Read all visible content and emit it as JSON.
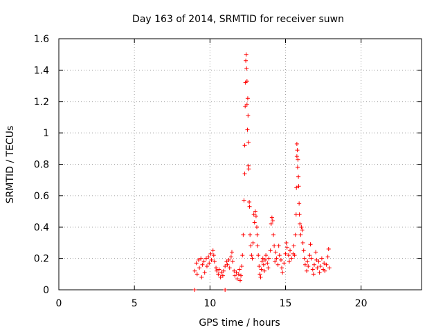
{
  "chart_data": {
    "type": "scatter",
    "title": "Day 163 of 2014, SRMTID for receiver suwn",
    "xlabel": "GPS time / hours",
    "ylabel": "SRMTID / TECUs",
    "xlim": [
      0,
      24
    ],
    "ylim": [
      0,
      1.6
    ],
    "xticks": [
      0,
      5,
      10,
      15,
      20
    ],
    "yticks": [
      0,
      0.2,
      0.4,
      0.6,
      0.8,
      1,
      1.2,
      1.4,
      1.6
    ],
    "xtick_labels": [
      "0",
      "5",
      "10",
      "15",
      "20"
    ],
    "ytick_labels": [
      "0",
      "0.2",
      "0.4",
      "0.6",
      "0.8",
      "1",
      "1.2",
      "1.4",
      "1.6"
    ],
    "grid": true,
    "marker": "+",
    "color": "#ff0000",
    "series": [
      {
        "name": "SRMTID",
        "points": [
          [
            9.0,
            0.0
          ],
          [
            11.0,
            0.0
          ],
          [
            9.0,
            0.12
          ],
          [
            9.1,
            0.17
          ],
          [
            9.15,
            0.1
          ],
          [
            9.25,
            0.19
          ],
          [
            9.3,
            0.14
          ],
          [
            9.4,
            0.2
          ],
          [
            9.45,
            0.08
          ],
          [
            9.5,
            0.16
          ],
          [
            9.6,
            0.18
          ],
          [
            9.65,
            0.11
          ],
          [
            9.75,
            0.2
          ],
          [
            9.8,
            0.15
          ],
          [
            9.9,
            0.21
          ],
          [
            9.95,
            0.17
          ],
          [
            10.05,
            0.23
          ],
          [
            10.1,
            0.19
          ],
          [
            10.2,
            0.25
          ],
          [
            10.25,
            0.22
          ],
          [
            10.3,
            0.18
          ],
          [
            10.4,
            0.14
          ],
          [
            10.45,
            0.12
          ],
          [
            10.55,
            0.1
          ],
          [
            10.6,
            0.13
          ],
          [
            10.7,
            0.08
          ],
          [
            10.75,
            0.11
          ],
          [
            10.85,
            0.09
          ],
          [
            10.9,
            0.12
          ],
          [
            11.0,
            0.15
          ],
          [
            11.1,
            0.18
          ],
          [
            11.15,
            0.16
          ],
          [
            11.25,
            0.19
          ],
          [
            11.3,
            0.14
          ],
          [
            11.4,
            0.21
          ],
          [
            11.45,
            0.24
          ],
          [
            11.5,
            0.18
          ],
          [
            11.6,
            0.12
          ],
          [
            11.65,
            0.09
          ],
          [
            11.75,
            0.11
          ],
          [
            11.8,
            0.07
          ],
          [
            11.9,
            0.1
          ],
          [
            11.95,
            0.13
          ],
          [
            12.0,
            0.06
          ],
          [
            12.05,
            0.09
          ],
          [
            12.1,
            0.15
          ],
          [
            12.15,
            0.22
          ],
          [
            12.2,
            0.35
          ],
          [
            12.25,
            0.57
          ],
          [
            12.3,
            0.74
          ],
          [
            12.3,
            0.92
          ],
          [
            12.33,
            1.17
          ],
          [
            12.35,
            1.32
          ],
          [
            12.37,
            1.46
          ],
          [
            12.4,
            1.5
          ],
          [
            12.42,
            1.41
          ],
          [
            12.45,
            1.33
          ],
          [
            12.45,
            1.18
          ],
          [
            12.48,
            1.02
          ],
          [
            12.5,
            1.22
          ],
          [
            12.52,
            1.11
          ],
          [
            12.55,
            0.94
          ],
          [
            12.55,
            0.79
          ],
          [
            12.57,
            0.77
          ],
          [
            12.6,
            0.56
          ],
          [
            12.62,
            0.53
          ],
          [
            12.65,
            0.35
          ],
          [
            12.7,
            0.28
          ],
          [
            12.75,
            0.22
          ],
          [
            12.8,
            0.2
          ],
          [
            12.85,
            0.3
          ],
          [
            12.9,
            0.48
          ],
          [
            12.95,
            0.43
          ],
          [
            13.0,
            0.5
          ],
          [
            13.05,
            0.47
          ],
          [
            13.1,
            0.4
          ],
          [
            13.12,
            0.35
          ],
          [
            13.15,
            0.28
          ],
          [
            13.2,
            0.22
          ],
          [
            13.25,
            0.15
          ],
          [
            13.3,
            0.1
          ],
          [
            13.35,
            0.08
          ],
          [
            13.4,
            0.13
          ],
          [
            13.45,
            0.18
          ],
          [
            13.5,
            0.2
          ],
          [
            13.55,
            0.16
          ],
          [
            13.6,
            0.12
          ],
          [
            13.65,
            0.19
          ],
          [
            13.7,
            0.22
          ],
          [
            13.8,
            0.17
          ],
          [
            13.85,
            0.14
          ],
          [
            13.9,
            0.2
          ],
          [
            14.0,
            0.25
          ],
          [
            14.05,
            0.42
          ],
          [
            14.1,
            0.46
          ],
          [
            14.15,
            0.44
          ],
          [
            14.2,
            0.35
          ],
          [
            14.25,
            0.28
          ],
          [
            14.3,
            0.18
          ],
          [
            14.35,
            0.24
          ],
          [
            14.4,
            0.2
          ],
          [
            14.5,
            0.16
          ],
          [
            14.55,
            0.28
          ],
          [
            14.6,
            0.22
          ],
          [
            14.7,
            0.19
          ],
          [
            14.75,
            0.14
          ],
          [
            14.8,
            0.11
          ],
          [
            14.9,
            0.17
          ],
          [
            15.0,
            0.23
          ],
          [
            15.05,
            0.3
          ],
          [
            15.1,
            0.27
          ],
          [
            15.2,
            0.22
          ],
          [
            15.25,
            0.18
          ],
          [
            15.3,
            0.25
          ],
          [
            15.4,
            0.2
          ],
          [
            15.5,
            0.23
          ],
          [
            15.55,
            0.28
          ],
          [
            15.6,
            0.22
          ],
          [
            15.65,
            0.35
          ],
          [
            15.7,
            0.48
          ],
          [
            15.72,
            0.65
          ],
          [
            15.75,
            0.85
          ],
          [
            15.75,
            0.93
          ],
          [
            15.78,
            0.89
          ],
          [
            15.8,
            0.78
          ],
          [
            15.82,
            0.83
          ],
          [
            15.85,
            0.72
          ],
          [
            15.87,
            0.66
          ],
          [
            15.9,
            0.55
          ],
          [
            15.92,
            0.48
          ],
          [
            15.95,
            0.42
          ],
          [
            16.0,
            0.35
          ],
          [
            16.05,
            0.4
          ],
          [
            16.1,
            0.38
          ],
          [
            16.15,
            0.3
          ],
          [
            16.2,
            0.25
          ],
          [
            16.25,
            0.2
          ],
          [
            16.3,
            0.16
          ],
          [
            16.4,
            0.12
          ],
          [
            16.45,
            0.18
          ],
          [
            16.5,
            0.15
          ],
          [
            16.6,
            0.22
          ],
          [
            16.65,
            0.29
          ],
          [
            16.7,
            0.2
          ],
          [
            16.8,
            0.13
          ],
          [
            16.85,
            0.1
          ],
          [
            16.9,
            0.16
          ],
          [
            17.0,
            0.24
          ],
          [
            17.05,
            0.19
          ],
          [
            17.1,
            0.14
          ],
          [
            17.2,
            0.18
          ],
          [
            17.25,
            0.11
          ],
          [
            17.3,
            0.15
          ],
          [
            17.4,
            0.2
          ],
          [
            17.5,
            0.13
          ],
          [
            17.55,
            0.17
          ],
          [
            17.6,
            0.12
          ],
          [
            17.7,
            0.16
          ],
          [
            17.8,
            0.21
          ],
          [
            17.85,
            0.26
          ],
          [
            17.9,
            0.14
          ]
        ]
      }
    ]
  }
}
